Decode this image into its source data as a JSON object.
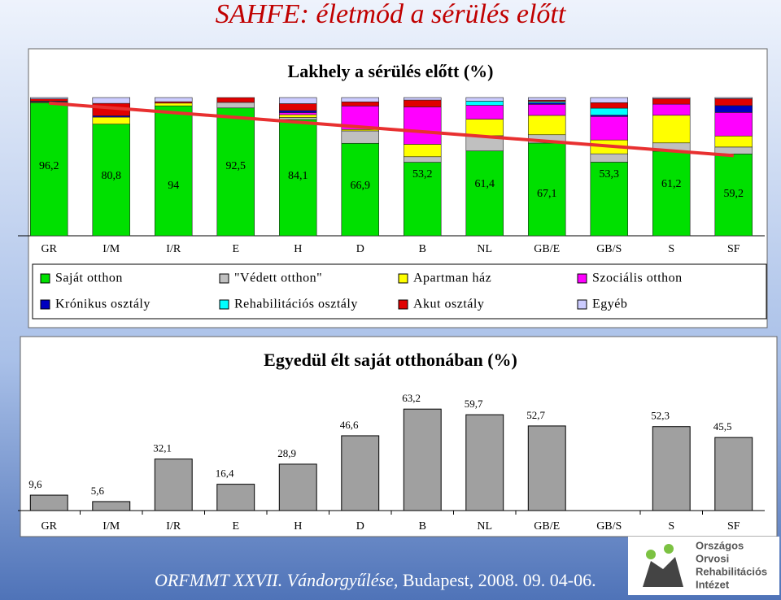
{
  "header": {
    "title": "SAHFE: életmód a sérülés előtt"
  },
  "chart_data": [
    {
      "type": "bar",
      "stacked": true,
      "title": "Lakhely a sérülés előtt (%)",
      "categories": [
        "GR",
        "I/M",
        "I/R",
        "E",
        "H",
        "D",
        "B",
        "NL",
        "GB/E",
        "GB/S",
        "S",
        "SF"
      ],
      "ylim": [
        0,
        100
      ],
      "legend": "bottom",
      "series": [
        {
          "name": "Saját otthon",
          "color": "#00e000",
          "values": [
            96.2,
            80.8,
            94,
            92.5,
            84.1,
            66.9,
            53.2,
            61.4,
            67.1,
            53.3,
            61.2,
            59.2
          ],
          "value_labels": [
            "96,2",
            "80,8",
            "94",
            "92,5",
            "84,1",
            "66,9",
            "53,2",
            "61,4",
            "67,1",
            "53,3",
            "61,2",
            "59,2"
          ]
        },
        {
          "name": "\"Védett otthon\"",
          "color": "#c0c0c0",
          "values": [
            0,
            0,
            0,
            4,
            1.5,
            9,
            4,
            11,
            6,
            6,
            6,
            5
          ]
        },
        {
          "name": "Apartman ház",
          "color": "#ffff00",
          "values": [
            0.6,
            5,
            2,
            0,
            2,
            1,
            9,
            12,
            14,
            10,
            20,
            8
          ]
        },
        {
          "name": "Szociális otthon",
          "color": "#ff00ff",
          "values": [
            0,
            0,
            0,
            0,
            1.5,
            17,
            27,
            10,
            8,
            17,
            8,
            17
          ]
        },
        {
          "name": "Krónikus osztály",
          "color": "#0000c0",
          "values": [
            0.6,
            1,
            0,
            0,
            1.5,
            0,
            0,
            0,
            1,
            1,
            0,
            5
          ]
        },
        {
          "name": "Rehabilitációs osztály",
          "color": "#00ffff",
          "values": [
            0,
            0,
            0,
            0,
            0,
            0,
            0,
            3,
            1,
            5,
            0,
            0
          ]
        },
        {
          "name": "Akut osztály",
          "color": "#e00000",
          "values": [
            1.6,
            9,
            1,
            3.5,
            5,
            3,
            5,
            0,
            1,
            4,
            4,
            5
          ]
        },
        {
          "name": "Egyéb",
          "color": "#ccccff",
          "values": [
            1.0,
            4.2,
            3,
            0,
            4.4,
            3.1,
            1.8,
            2.6,
            1.9,
            3.7,
            0.8,
            0.8
          ]
        }
      ],
      "trend": {
        "color": "#e83030",
        "values": [
          96,
          58
        ]
      }
    },
    {
      "type": "bar",
      "title": "Egyedül élt saját otthonában (%)",
      "categories": [
        "GR",
        "I/M",
        "I/R",
        "E",
        "H",
        "D",
        "B",
        "NL",
        "GB/E",
        "GB/S",
        "S",
        "SF"
      ],
      "values": [
        9.6,
        5.6,
        32.1,
        16.4,
        28.9,
        46.6,
        63.2,
        59.7,
        52.7,
        null,
        52.3,
        45.5
      ],
      "value_labels": [
        "9,6",
        "5,6",
        "32,1",
        "16,4",
        "28,9",
        "46,6",
        "63,2",
        "59,7",
        "52,7",
        null,
        "52,3",
        "45,5"
      ],
      "color": "#a0a0a0",
      "ylim": [
        0,
        80
      ]
    }
  ],
  "footer": {
    "italic": "ORFMMT XXVII. Vándorgyűlése",
    "rest": ", Budapest, 2008. 09. 04-06."
  },
  "logo": {
    "lines": [
      "Országos",
      "Orvosi",
      "Rehabilitációs",
      "Intézet"
    ]
  }
}
